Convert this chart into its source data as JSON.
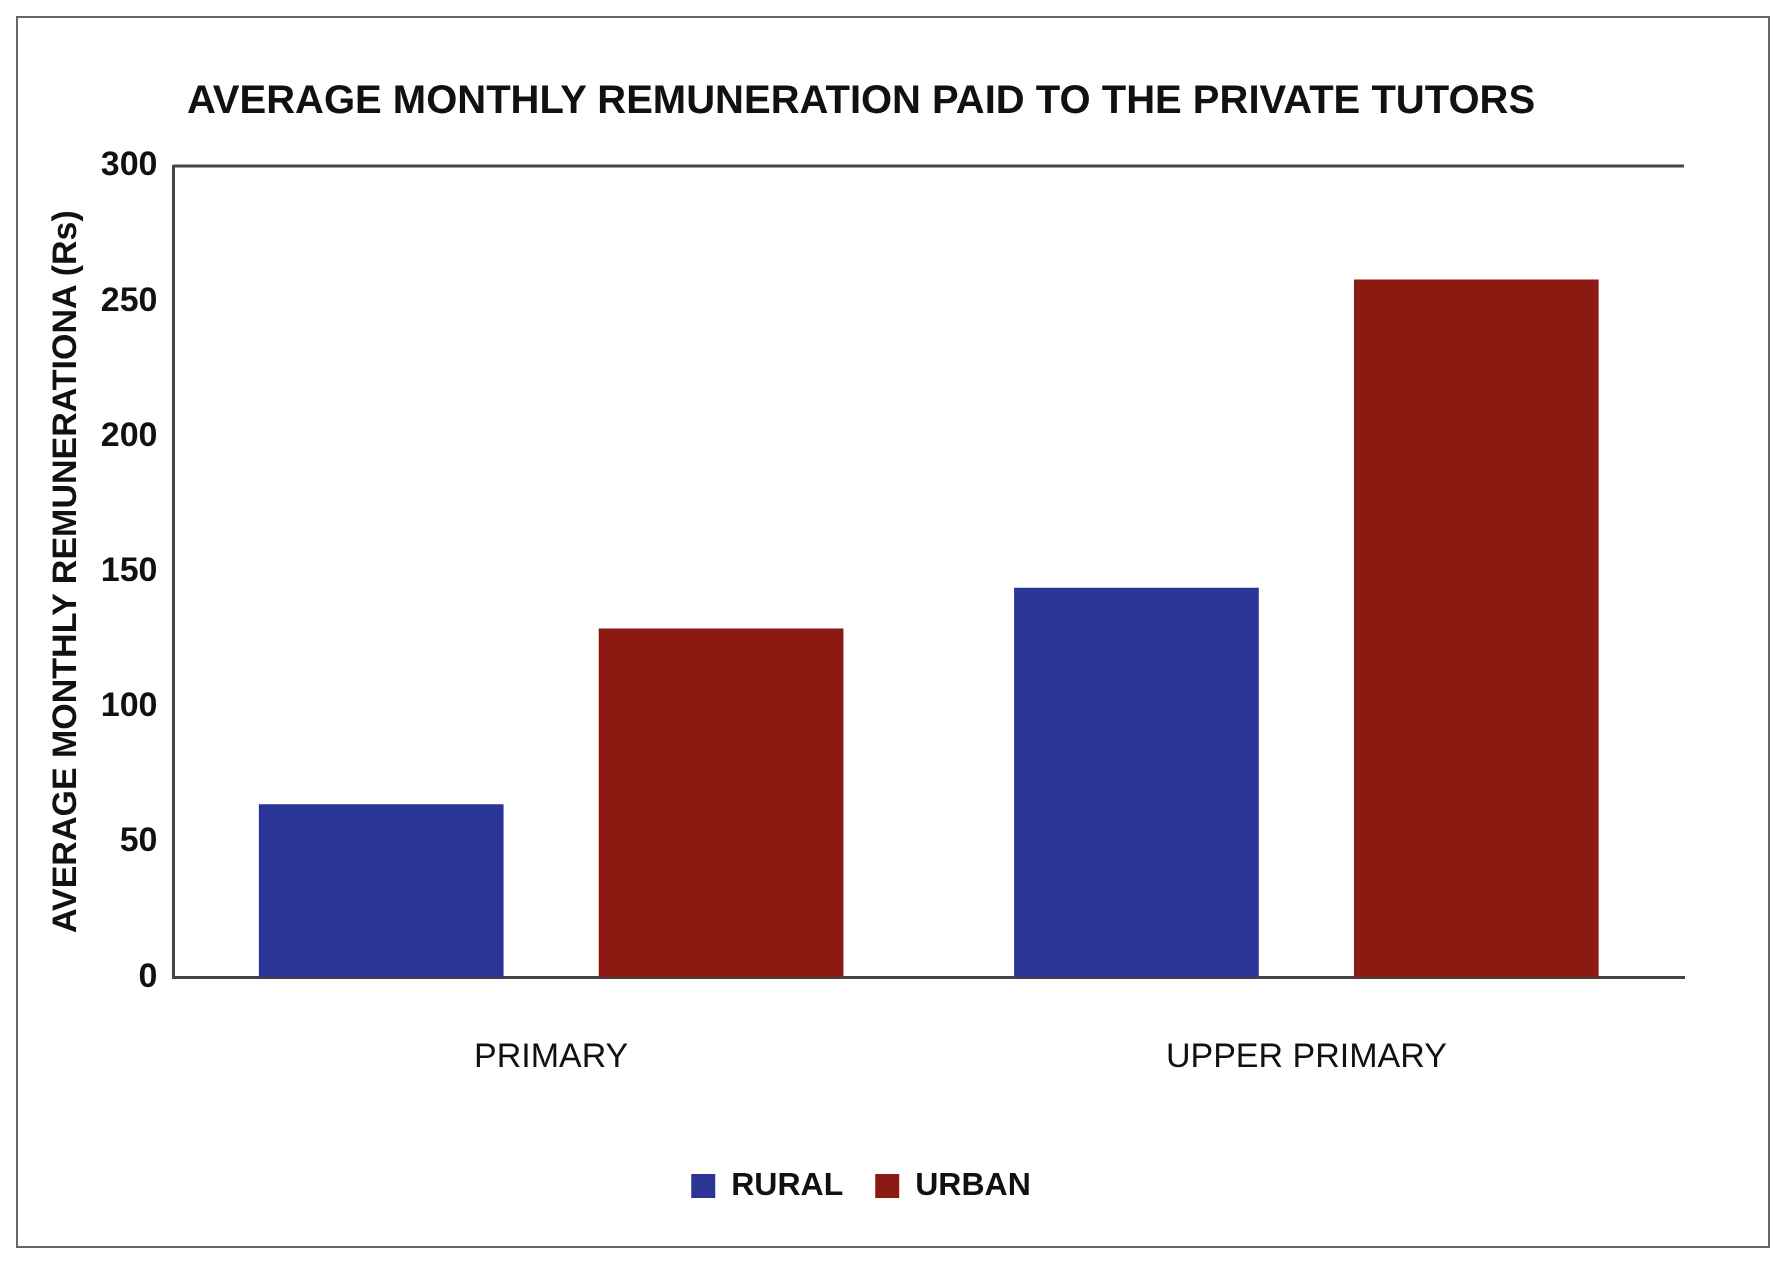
{
  "chart_data": {
    "type": "bar",
    "title": "AVERAGE MONTHLY REMUNERATION PAID TO THE PRIVATE TUTORS",
    "ylabel": "AVERAGE MONTHLY REMUNERATIONA (Rs)",
    "categories": [
      "PRIMARY",
      "UPPER PRIMARY"
    ],
    "series": [
      {
        "name": "RURAL",
        "color": "#2b3596",
        "values": [
          64,
          144
        ]
      },
      {
        "name": "URBAN",
        "color": "#8b1a12",
        "values": [
          129,
          258
        ]
      }
    ],
    "ylim": [
      0,
      300
    ],
    "yticks": [
      0,
      50,
      100,
      150,
      200,
      250,
      300
    ],
    "grid": false,
    "legend": "bottom"
  }
}
